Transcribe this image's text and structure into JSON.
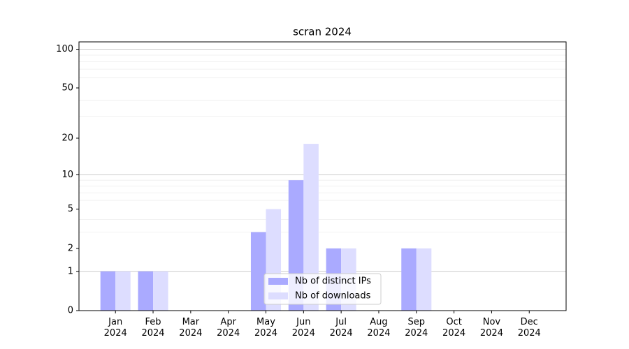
{
  "chart_data": {
    "type": "bar",
    "title": "scran 2024",
    "categories": [
      "Jan\n2024",
      "Feb\n2024",
      "Mar\n2024",
      "Apr\n2024",
      "May\n2024",
      "Jun\n2024",
      "Jul\n2024",
      "Aug\n2024",
      "Sep\n2024",
      "Oct\n2024",
      "Nov\n2024",
      "Dec\n2024"
    ],
    "series": [
      {
        "name": "Nb of distinct IPs",
        "color": "#aaaaff",
        "values": [
          1,
          1,
          0,
          0,
          3,
          9,
          2,
          0,
          2,
          0,
          0,
          0
        ]
      },
      {
        "name": "Nb of downloads",
        "color": "#ddddff",
        "values": [
          1,
          1,
          0,
          0,
          5,
          18,
          2,
          0,
          2,
          0,
          0,
          0
        ]
      }
    ],
    "yscale": "log10(y+1)",
    "ylim": [
      0,
      114
    ],
    "yticks": [
      0,
      1,
      2,
      5,
      10,
      20,
      50,
      100
    ],
    "major_grid": [
      1,
      10,
      100
    ],
    "minor_grid": [
      3,
      4,
      6,
      7,
      8,
      9,
      30,
      40,
      60,
      70,
      80,
      90
    ],
    "grid": true,
    "legend": "lower center"
  }
}
